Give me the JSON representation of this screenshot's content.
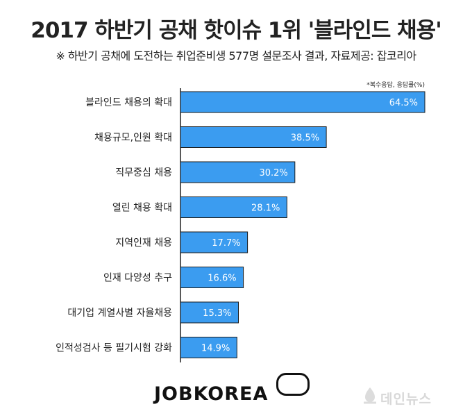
{
  "title": "2017 하반기 공채 핫이슈 1위 '블라인드 채용'",
  "subtitle": "※ 하반기 공채에 도전하는 취업준비생 577명 설문조사 결과,  자료제공: 잡코리아",
  "note": "*복수응답, 응답률(%)",
  "brand": "JOBKOREA",
  "watermark": "데인뉴스",
  "colors": {
    "bar": "#3b9cf0",
    "bar_border": "#1a1a1a",
    "axis": "#222222",
    "label_text": "#ffffff"
  },
  "chart_data": {
    "type": "bar",
    "orientation": "horizontal",
    "categories": [
      "블라인드 채용의 확대",
      "채용규모,인원 확대",
      "직무중심 채용",
      "열린 채용 확대",
      "지역인재 채용",
      "인재 다양성 추구",
      "대기업 계열사별 자율채용",
      "인적성검사 등 필기시험 강화"
    ],
    "values": [
      64.5,
      38.5,
      30.2,
      28.1,
      17.7,
      16.6,
      15.3,
      14.9
    ],
    "value_labels": [
      "64.5%",
      "38.5%",
      "30.2%",
      "28.1%",
      "17.7%",
      "16.6%",
      "15.3%",
      "14.9%"
    ],
    "xlim": [
      0,
      64.5
    ],
    "grid": false,
    "legend": "none"
  }
}
